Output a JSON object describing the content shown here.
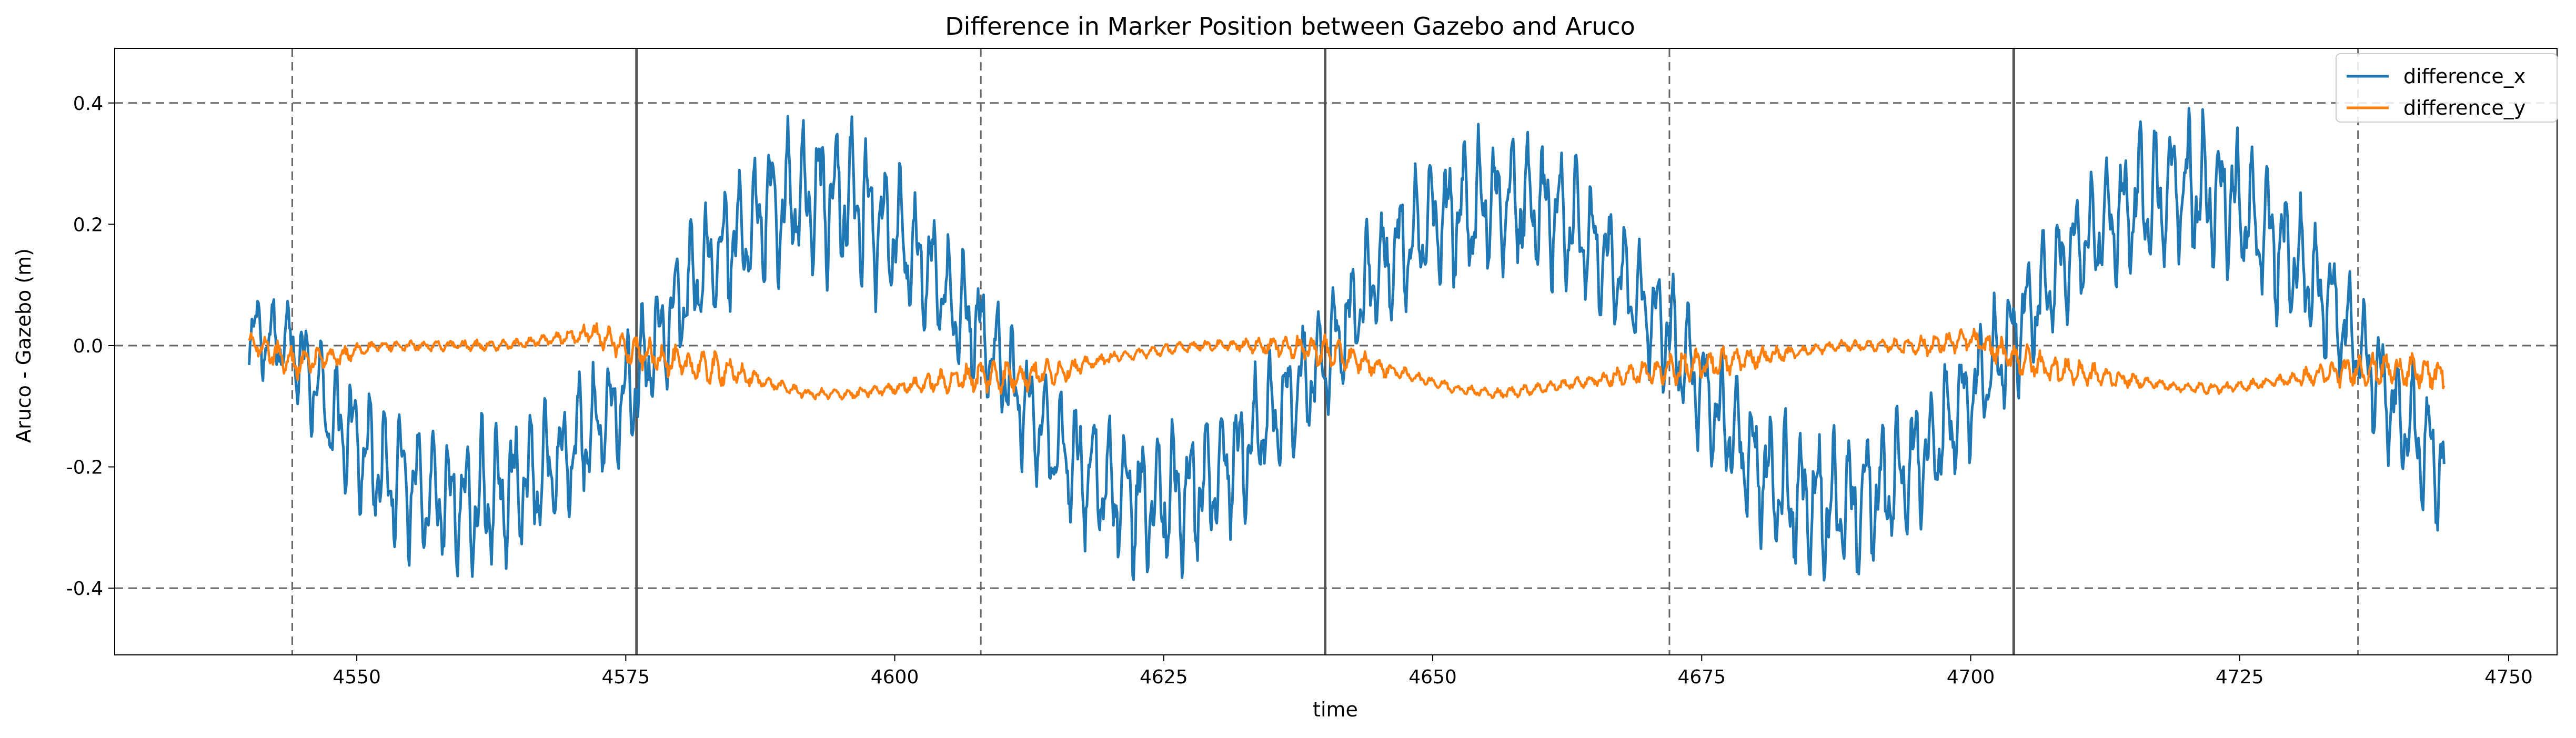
{
  "chart_data": {
    "type": "line",
    "title": "Difference in Marker Position between Gazebo and Aruco",
    "xlabel": "time",
    "ylabel": "Aruco - Gazebo (m)",
    "xlim": [
      4527.5,
      4754.5
    ],
    "ylim": [
      -0.51,
      0.49
    ],
    "xticks": [
      4550,
      4575,
      4600,
      4625,
      4650,
      4675,
      4700,
      4725,
      4750
    ],
    "yticks": [
      -0.4,
      -0.2,
      0.0,
      0.2,
      0.4
    ],
    "grid": "off",
    "legend": "top-right",
    "reference_lines": {
      "horizontal_dashed": [
        -0.4,
        0.0,
        0.4
      ],
      "vertical_dashed": [
        4544,
        4608,
        4672,
        4736
      ],
      "vertical_solid": [
        4576,
        4640,
        4704
      ]
    },
    "series": [
      {
        "name": "difference_x",
        "color": "#1f77b4",
        "x": [
          4540,
          4544,
          4548,
          4552,
          4556,
          4560,
          4564,
          4568,
          4572,
          4576,
          4580,
          4584,
          4588,
          4592,
          4596,
          4600,
          4604,
          4608,
          4612,
          4616,
          4620,
          4624,
          4628,
          4632,
          4636,
          4640,
          4644,
          4648,
          4652,
          4656,
          4660,
          4664,
          4668,
          4672,
          4676,
          4680,
          4684,
          4688,
          4692,
          4696,
          4700,
          4704,
          4708,
          4712,
          4716,
          4720,
          4724,
          4728,
          4732,
          4736,
          4740,
          4744
        ],
        "y": [
          0.02,
          0.0,
          -0.12,
          -0.2,
          -0.24,
          -0.26,
          -0.24,
          -0.2,
          -0.14,
          -0.06,
          0.08,
          0.16,
          0.22,
          0.25,
          0.24,
          0.18,
          0.1,
          0.02,
          -0.1,
          -0.18,
          -0.24,
          -0.26,
          -0.24,
          -0.18,
          -0.1,
          -0.02,
          0.1,
          0.18,
          0.22,
          0.24,
          0.23,
          0.18,
          0.1,
          0.02,
          -0.1,
          -0.2,
          -0.26,
          -0.27,
          -0.24,
          -0.18,
          -0.08,
          0.02,
          0.12,
          0.2,
          0.24,
          0.26,
          0.24,
          0.18,
          0.1,
          0.0,
          -0.12,
          -0.2
        ],
        "amplitude": [
          0.06,
          0.08,
          0.1,
          0.11,
          0.12,
          0.12,
          0.12,
          0.11,
          0.1,
          0.1,
          0.1,
          0.11,
          0.12,
          0.13,
          0.13,
          0.12,
          0.1,
          0.1,
          0.1,
          0.11,
          0.12,
          0.12,
          0.12,
          0.11,
          0.1,
          0.1,
          0.1,
          0.11,
          0.12,
          0.12,
          0.12,
          0.11,
          0.1,
          0.1,
          0.1,
          0.11,
          0.12,
          0.12,
          0.12,
          0.11,
          0.1,
          0.1,
          0.1,
          0.11,
          0.12,
          0.13,
          0.13,
          0.12,
          0.1,
          0.1,
          0.1,
          0.12
        ]
      },
      {
        "name": "difference_y",
        "color": "#ff7f0e",
        "x": [
          4540,
          4544,
          4548,
          4552,
          4556,
          4560,
          4564,
          4568,
          4572,
          4576,
          4580,
          4584,
          4588,
          4592,
          4596,
          4600,
          4604,
          4608,
          4612,
          4616,
          4620,
          4624,
          4628,
          4632,
          4636,
          4640,
          4644,
          4648,
          4652,
          4656,
          4660,
          4664,
          4668,
          4672,
          4676,
          4680,
          4684,
          4688,
          4692,
          4696,
          4700,
          4704,
          4708,
          4712,
          4716,
          4720,
          4724,
          4728,
          4732,
          4736,
          4740,
          4744
        ],
        "y": [
          0.01,
          -0.03,
          -0.02,
          0.0,
          0.0,
          0.0,
          0.0,
          0.01,
          0.02,
          -0.01,
          -0.03,
          -0.04,
          -0.06,
          -0.08,
          -0.08,
          -0.07,
          -0.06,
          -0.05,
          -0.05,
          -0.04,
          -0.02,
          -0.01,
          0.0,
          0.0,
          0.0,
          -0.01,
          -0.03,
          -0.05,
          -0.07,
          -0.08,
          -0.07,
          -0.06,
          -0.05,
          -0.04,
          -0.03,
          -0.02,
          -0.01,
          0.0,
          0.0,
          0.0,
          0.01,
          -0.02,
          -0.04,
          -0.05,
          -0.06,
          -0.07,
          -0.07,
          -0.06,
          -0.05,
          -0.04,
          -0.04,
          -0.05
        ],
        "amplitude": [
          0.02,
          0.03,
          0.02,
          0.01,
          0.01,
          0.01,
          0.01,
          0.01,
          0.02,
          0.03,
          0.03,
          0.03,
          0.01,
          0.01,
          0.01,
          0.01,
          0.02,
          0.03,
          0.03,
          0.02,
          0.01,
          0.01,
          0.01,
          0.01,
          0.02,
          0.03,
          0.02,
          0.01,
          0.01,
          0.01,
          0.01,
          0.01,
          0.02,
          0.03,
          0.03,
          0.02,
          0.01,
          0.01,
          0.01,
          0.02,
          0.02,
          0.03,
          0.03,
          0.02,
          0.01,
          0.01,
          0.01,
          0.01,
          0.02,
          0.03,
          0.03,
          0.03
        ]
      }
    ]
  }
}
